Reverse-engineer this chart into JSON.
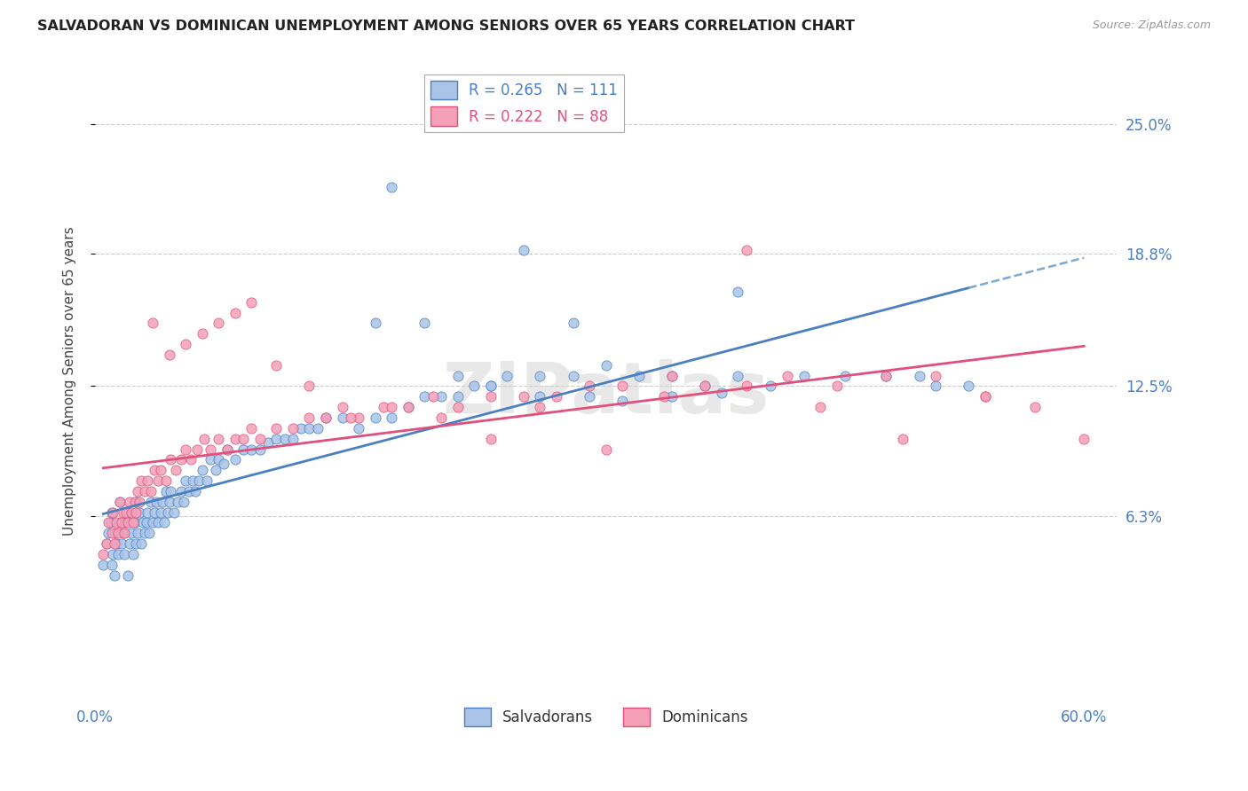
{
  "title": "SALVADORAN VS DOMINICAN UNEMPLOYMENT AMONG SENIORS OVER 65 YEARS CORRELATION CHART",
  "source": "Source: ZipAtlas.com",
  "ylabel": "Unemployment Among Seniors over 65 years",
  "xlim": [
    0.0,
    0.62
  ],
  "ylim": [
    -0.025,
    0.28
  ],
  "ytick_positions": [
    0.063,
    0.125,
    0.188,
    0.25
  ],
  "ytick_labels": [
    "6.3%",
    "12.5%",
    "18.8%",
    "25.0%"
  ],
  "salvadoran_color": "#aac4e8",
  "dominican_color": "#f4a0b8",
  "salvadoran_line_color": "#4a7fc1",
  "dominican_line_color": "#e0507a",
  "salvadoran_dashed_color": "#7aaad4",
  "R_salvadoran": 0.265,
  "N_salvadoran": 111,
  "R_dominican": 0.222,
  "N_dominican": 88,
  "watermark": "ZIPatlas",
  "legend_labels": [
    "Salvadorans",
    "Dominicans"
  ],
  "background_color": "#ffffff",
  "grid_color": "#cccccc",
  "title_color": "#222222",
  "axis_label_color": "#444444",
  "tick_label_color": "#4a7fc1",
  "salvadoran_x": [
    0.005,
    0.007,
    0.008,
    0.009,
    0.01,
    0.01,
    0.011,
    0.012,
    0.012,
    0.013,
    0.014,
    0.015,
    0.015,
    0.016,
    0.017,
    0.018,
    0.019,
    0.02,
    0.02,
    0.021,
    0.022,
    0.023,
    0.024,
    0.025,
    0.025,
    0.026,
    0.027,
    0.028,
    0.029,
    0.03,
    0.031,
    0.032,
    0.033,
    0.034,
    0.035,
    0.036,
    0.037,
    0.038,
    0.04,
    0.041,
    0.042,
    0.043,
    0.044,
    0.045,
    0.046,
    0.048,
    0.05,
    0.052,
    0.054,
    0.055,
    0.057,
    0.059,
    0.061,
    0.063,
    0.065,
    0.068,
    0.07,
    0.073,
    0.075,
    0.078,
    0.08,
    0.085,
    0.09,
    0.095,
    0.1,
    0.105,
    0.11,
    0.115,
    0.12,
    0.125,
    0.13,
    0.135,
    0.14,
    0.15,
    0.16,
    0.17,
    0.18,
    0.19,
    0.2,
    0.21,
    0.22,
    0.23,
    0.24,
    0.25,
    0.27,
    0.29,
    0.31,
    0.33,
    0.35,
    0.37,
    0.39,
    0.41,
    0.43,
    0.455,
    0.48,
    0.5,
    0.51,
    0.53,
    0.39,
    0.29,
    0.17,
    0.26,
    0.18,
    0.2,
    0.22,
    0.24,
    0.27,
    0.3,
    0.32,
    0.35,
    0.38
  ],
  "salvadoran_y": [
    0.04,
    0.05,
    0.055,
    0.06,
    0.04,
    0.065,
    0.045,
    0.035,
    0.055,
    0.05,
    0.045,
    0.06,
    0.07,
    0.05,
    0.055,
    0.045,
    0.06,
    0.035,
    0.065,
    0.05,
    0.055,
    0.045,
    0.06,
    0.05,
    0.07,
    0.055,
    0.065,
    0.05,
    0.06,
    0.055,
    0.06,
    0.065,
    0.055,
    0.07,
    0.06,
    0.065,
    0.07,
    0.06,
    0.065,
    0.07,
    0.06,
    0.075,
    0.065,
    0.07,
    0.075,
    0.065,
    0.07,
    0.075,
    0.07,
    0.08,
    0.075,
    0.08,
    0.075,
    0.08,
    0.085,
    0.08,
    0.09,
    0.085,
    0.09,
    0.088,
    0.095,
    0.09,
    0.095,
    0.095,
    0.095,
    0.098,
    0.1,
    0.1,
    0.1,
    0.105,
    0.105,
    0.105,
    0.11,
    0.11,
    0.105,
    0.11,
    0.11,
    0.115,
    0.12,
    0.12,
    0.12,
    0.125,
    0.125,
    0.13,
    0.13,
    0.13,
    0.135,
    0.13,
    0.13,
    0.125,
    0.13,
    0.125,
    0.13,
    0.13,
    0.13,
    0.13,
    0.125,
    0.125,
    0.17,
    0.155,
    0.155,
    0.19,
    0.22,
    0.155,
    0.13,
    0.125,
    0.12,
    0.12,
    0.118,
    0.12,
    0.122
  ],
  "dominican_x": [
    0.005,
    0.007,
    0.008,
    0.01,
    0.011,
    0.012,
    0.013,
    0.014,
    0.015,
    0.016,
    0.017,
    0.018,
    0.019,
    0.02,
    0.021,
    0.022,
    0.023,
    0.024,
    0.025,
    0.026,
    0.027,
    0.028,
    0.03,
    0.032,
    0.034,
    0.036,
    0.038,
    0.04,
    0.043,
    0.046,
    0.049,
    0.052,
    0.055,
    0.058,
    0.062,
    0.066,
    0.07,
    0.075,
    0.08,
    0.085,
    0.09,
    0.095,
    0.1,
    0.11,
    0.12,
    0.13,
    0.14,
    0.15,
    0.16,
    0.175,
    0.19,
    0.205,
    0.22,
    0.24,
    0.26,
    0.28,
    0.3,
    0.32,
    0.345,
    0.37,
    0.395,
    0.42,
    0.45,
    0.48,
    0.51,
    0.54,
    0.57,
    0.6,
    0.035,
    0.045,
    0.055,
    0.065,
    0.075,
    0.085,
    0.095,
    0.11,
    0.13,
    0.155,
    0.18,
    0.21,
    0.24,
    0.27,
    0.31,
    0.35,
    0.395,
    0.44,
    0.49,
    0.54
  ],
  "dominican_y": [
    0.045,
    0.05,
    0.06,
    0.055,
    0.065,
    0.05,
    0.06,
    0.055,
    0.07,
    0.06,
    0.065,
    0.055,
    0.065,
    0.06,
    0.07,
    0.065,
    0.06,
    0.07,
    0.065,
    0.075,
    0.07,
    0.08,
    0.075,
    0.08,
    0.075,
    0.085,
    0.08,
    0.085,
    0.08,
    0.09,
    0.085,
    0.09,
    0.095,
    0.09,
    0.095,
    0.1,
    0.095,
    0.1,
    0.095,
    0.1,
    0.1,
    0.105,
    0.1,
    0.105,
    0.105,
    0.11,
    0.11,
    0.115,
    0.11,
    0.115,
    0.115,
    0.12,
    0.115,
    0.12,
    0.12,
    0.12,
    0.125,
    0.125,
    0.12,
    0.125,
    0.125,
    0.13,
    0.125,
    0.13,
    0.13,
    0.12,
    0.115,
    0.1,
    0.155,
    0.14,
    0.145,
    0.15,
    0.155,
    0.16,
    0.165,
    0.135,
    0.125,
    0.11,
    0.115,
    0.11,
    0.1,
    0.115,
    0.095,
    0.13,
    0.19,
    0.115,
    0.1,
    0.12
  ]
}
